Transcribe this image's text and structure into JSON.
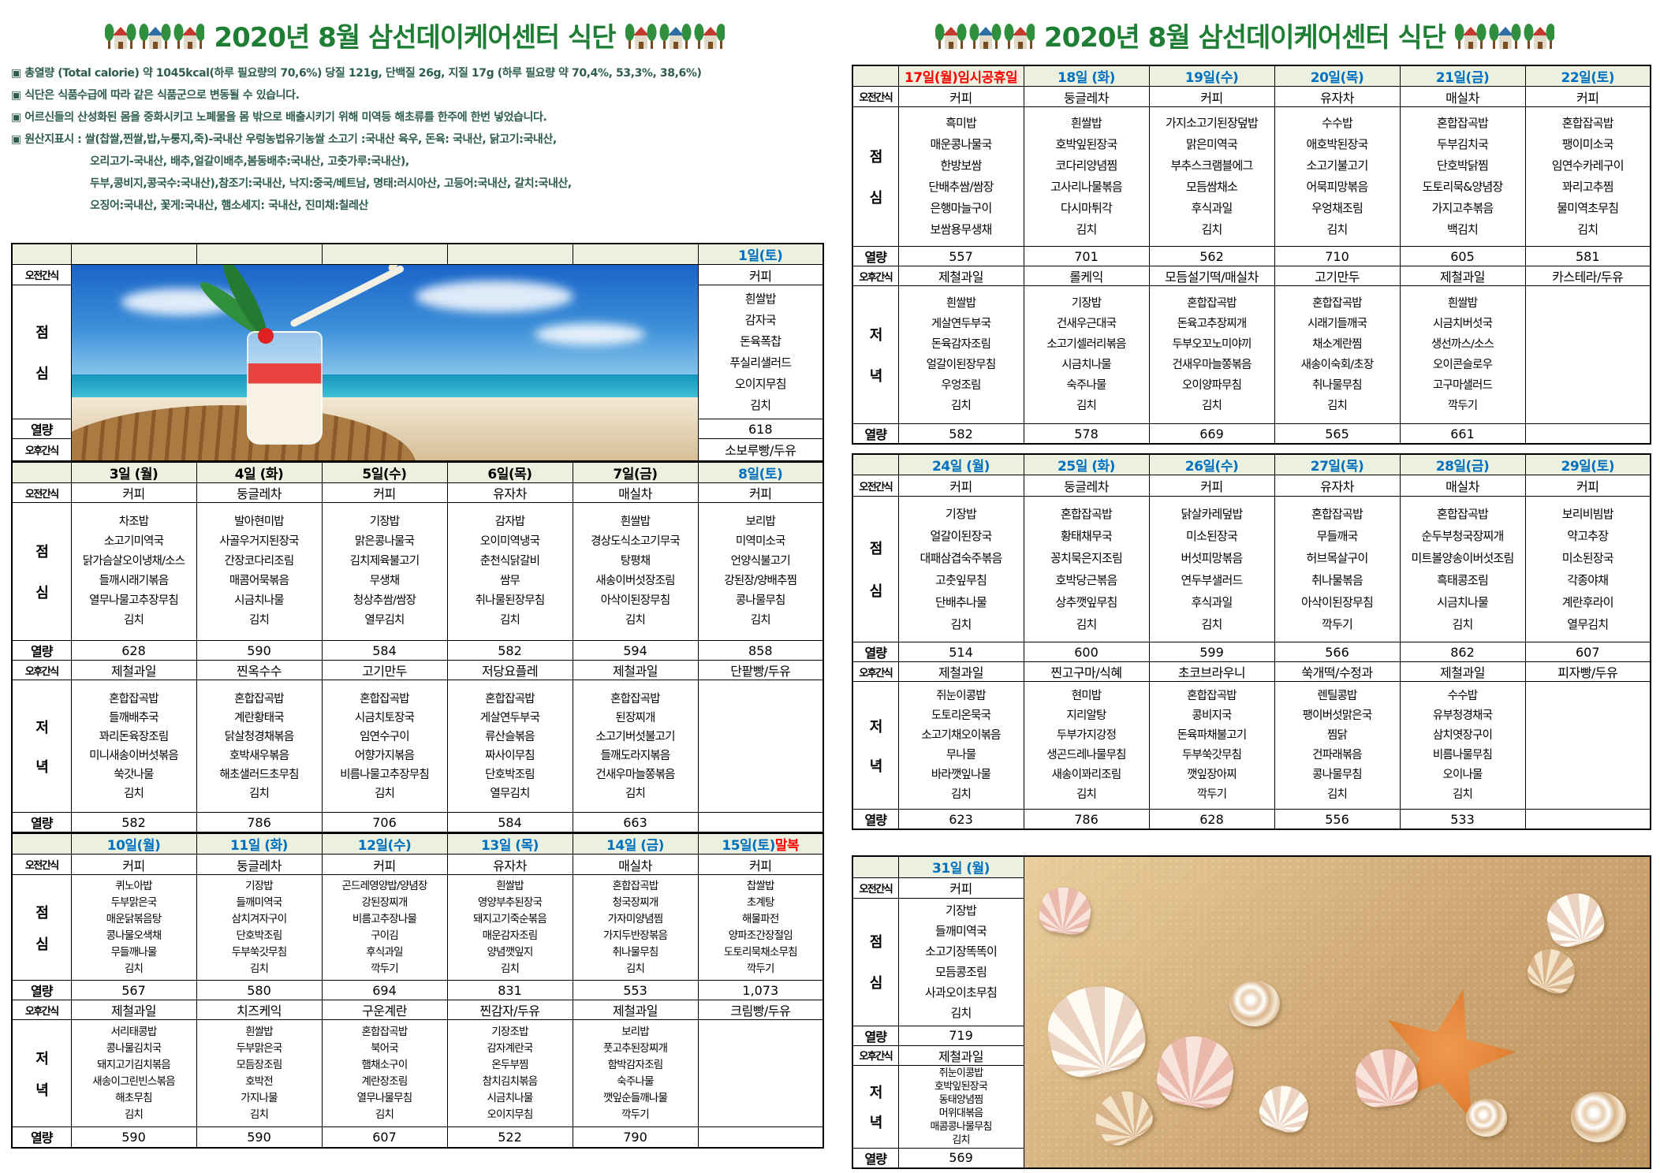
{
  "page_titles": [
    "2020년 8월 삼선데이케어센터 식단",
    "2020년 8월 삼선데이케어센터 식단"
  ],
  "notes": [
    {
      "text": "▣ 총열량 (Total calorie) 약 1045kcal(하루 필요량의 70,6%) 당질 121g, 단백질 26g, 지질 17g  (하루 필요량 약 70,4%, 53,3%, 38,6%)",
      "indent": false
    },
    {
      "text": "▣ 식단은 식품수급에 따라 같은 식품군으로 변동될 수 있습니다.",
      "indent": false
    },
    {
      "text": "▣ 어르신들의 산성화된 몸을 중화시키고 노폐물을 몸 밖으로 배출시키기 위해 미역등 해초류를 한주에 한번 넣었습니다.",
      "indent": false
    },
    {
      "text": "▣ 원산지표시 : 쌀(찹쌀,찐쌀,밥,누룽지,죽)-국내산 우렁농법유기농쌀  소고기 :국내산 육우, 돈육: 국내산, 닭고기:국내산,",
      "indent": false
    },
    {
      "text": "오리고기-국내산,  배추,얼갈이배추,봄동배추:국내산, 고춧가루:국내산),",
      "indent": true
    },
    {
      "text": "두부,콩비지,콩국수:국내산),참조기:국내산, 낙지:중국/베트남, 명태:러시아산, 고등어:국내산, 갈치:국내산,",
      "indent": true
    },
    {
      "text": "오징어:국내산, 꽃게:국내산, 햄소세지: 국내산, 진미채:칠레산",
      "indent": true
    }
  ],
  "row_labels": {
    "am": "오전간식",
    "lunch": "점심",
    "kcal": "열량",
    "pm": "오후간식",
    "dinner": "저녁"
  },
  "colors": {
    "title_green": "#1e7e34",
    "day_blue": "#0070c0",
    "day_red": "#ff0000",
    "day_black": "#000000",
    "header_bg": "#ebf1de",
    "note_text": "#2e5d4e"
  },
  "week1": {
    "day": {
      "label": "1일(토)",
      "label_color": "#0070c0",
      "am": "커피",
      "lunch": [
        "흰쌀밥",
        "감자국",
        "돈육폭찹",
        "푸실리샐러드",
        "오이지무침",
        "김치"
      ],
      "lunch_kcal": "618",
      "pm": "소보루빵/두유"
    }
  },
  "week31": {
    "day": {
      "label": "31일 (월)",
      "label_color": "#0070c0",
      "am": "커피",
      "lunch": [
        "기장밥",
        "들깨미역국",
        "소고기장똑똑이",
        "모듬콩조림",
        "사과오이초무침",
        "김치"
      ],
      "lunch_kcal": "719",
      "pm": "제철과일",
      "dinner": [
        "쥐눈이콩밥",
        "호박잎된장국",
        "동태양념찜",
        "머위대볶음",
        "매콤콩나물무침",
        "김치"
      ],
      "dinner_kcal": "569"
    }
  },
  "weeks": [
    {
      "days": [
        {
          "label": [
            {
              "text": "3일 (월)",
              "color": "#000000"
            }
          ],
          "am": "커피",
          "lunch": [
            "차조밥",
            "소고기미역국",
            "닭가슴살오이냉채/소스",
            "들깨시래기볶음",
            "열무나물고추장무침",
            "김치"
          ],
          "lunch_kcal": "628",
          "pm": "제철과일",
          "dinner": [
            "혼합잡곡밥",
            "들깨배추국",
            "꽈리돈육장조림",
            "미니새송이버섯볶음",
            "쑥갓나물",
            "김치"
          ],
          "dinner_kcal": "582"
        },
        {
          "label": [
            {
              "text": "4일 (화)",
              "color": "#000000"
            }
          ],
          "am": "둥글레차",
          "lunch": [
            "발아현미밥",
            "사골우거지된장국",
            "간장코다리조림",
            "매콤어묵볶음",
            "시금치나물",
            "김치"
          ],
          "lunch_kcal": "590",
          "pm": "찐옥수수",
          "dinner": [
            "혼합잡곡밥",
            "계란황태국",
            "닭살청경채볶음",
            "호박새우볶음",
            "해초샐러드초무침",
            "김치"
          ],
          "dinner_kcal": "786"
        },
        {
          "label": [
            {
              "text": "5일(수)",
              "color": "#000000"
            }
          ],
          "am": "커피",
          "lunch": [
            "기장밥",
            "맑은콩나물국",
            "김치제육불고기",
            "무생채",
            "청상추쌈/쌈장",
            "열무김치"
          ],
          "lunch_kcal": "584",
          "pm": "고기만두",
          "dinner": [
            "혼합잡곡밥",
            "시금치토장국",
            "임연수구이",
            "어향가지볶음",
            "비름나물고추장무침",
            "김치"
          ],
          "dinner_kcal": "706"
        },
        {
          "label": [
            {
              "text": "6일(목)",
              "color": "#000000"
            }
          ],
          "am": "유자차",
          "lunch": [
            "감자밥",
            "오이미역냉국",
            "춘천식닭갈비",
            "쌈무",
            "취나물된장무침",
            "김치"
          ],
          "lunch_kcal": "582",
          "pm": "저당요플레",
          "dinner": [
            "혼합잡곡밥",
            "게살연두부국",
            "류산슬볶음",
            "짜사이무침",
            "단호박조림",
            "열무김치"
          ],
          "dinner_kcal": "584"
        },
        {
          "label": [
            {
              "text": "7일(금)",
              "color": "#000000"
            }
          ],
          "am": "매실차",
          "lunch": [
            "흰쌀밥",
            "경상도식소고기무국",
            "탕평채",
            "새송이버섯장조림",
            "아삭이된장무침",
            "김치"
          ],
          "lunch_kcal": "594",
          "pm": "제철과일",
          "dinner": [
            "혼합잡곡밥",
            "된장찌개",
            "소고기버섯불고기",
            "들깨도라지볶음",
            "건새우마늘쫑볶음",
            "김치"
          ],
          "dinner_kcal": "663"
        },
        {
          "label": [
            {
              "text": "8일(토)",
              "color": "#0070c0"
            }
          ],
          "am": "커피",
          "lunch": [
            "보리밥",
            "미역미소국",
            "언양식불고기",
            "강된장/양배추찜",
            "콩나물무침",
            "김치"
          ],
          "lunch_kcal": "858",
          "pm": "단팥빵/두유",
          "dinner": [],
          "dinner_kcal": ""
        }
      ]
    },
    {
      "days": [
        {
          "label": [
            {
              "text": "10일(월)",
              "color": "#0070c0"
            }
          ],
          "am": "커피",
          "lunch": [
            "퀴노아밥",
            "두부맑은국",
            "매운닭볶음탕",
            "콩나물오색채",
            "무들깨나물",
            "김치"
          ],
          "lunch_kcal": "567",
          "pm": "제철과일",
          "dinner": [
            "서리태콩밥",
            "콩나물김치국",
            "돼지고기김치볶음",
            "새송이그린빈스볶음",
            "해초무침",
            "김치"
          ],
          "dinner_kcal": "590"
        },
        {
          "label": [
            {
              "text": "11일 (화)",
              "color": "#0070c0"
            }
          ],
          "am": "둥글레차",
          "lunch": [
            "기장밥",
            "들깨미역국",
            "삼치겨자구이",
            "단호박조림",
            "두부쑥갓무침",
            "김치"
          ],
          "lunch_kcal": "580",
          "pm": "치즈케익",
          "dinner": [
            "흰쌀밥",
            "두부맑은국",
            "모듬장조림",
            "호박전",
            "가지나물",
            "김치"
          ],
          "dinner_kcal": "590"
        },
        {
          "label": [
            {
              "text": "12일(수)",
              "color": "#0070c0"
            }
          ],
          "am": "커피",
          "lunch": [
            "곤드레영양밥/양념장",
            "강된장찌개",
            "비름고추장나물",
            "구이김",
            "후식과일",
            "깍두기"
          ],
          "lunch_kcal": "694",
          "pm": "구운계란",
          "dinner": [
            "혼합잡곡밥",
            "북어국",
            "햄채소구이",
            "계란장조림",
            "열무나물무침",
            "김치"
          ],
          "dinner_kcal": "607"
        },
        {
          "label": [
            {
              "text": "13일 (목)",
              "color": "#0070c0"
            }
          ],
          "am": "유자차",
          "lunch": [
            "흰쌀밥",
            "영양부추된장국",
            "돼지고기죽순볶음",
            "매운감자조림",
            "양념깻잎지",
            "김치"
          ],
          "lunch_kcal": "831",
          "pm": "찐감자/두유",
          "dinner": [
            "기장조밥",
            "감자계란국",
            "온두부찜",
            "참치김치볶음",
            "시금치나물",
            "오이지무침"
          ],
          "dinner_kcal": "522"
        },
        {
          "label": [
            {
              "text": "14일 (금)",
              "color": "#0070c0"
            }
          ],
          "am": "매실차",
          "lunch": [
            "혼합잡곡밥",
            "청국장찌개",
            "가자미양념찜",
            "가지두반장볶음",
            "취나물무침",
            "김치"
          ],
          "lunch_kcal": "553",
          "pm": "제철과일",
          "dinner": [
            "보리밥",
            "풋고추된장찌개",
            "함박감자조림",
            "숙주나물",
            "깻잎순들깨나물",
            "깍두기"
          ],
          "dinner_kcal": "790"
        },
        {
          "label": [
            {
              "text": "15일(토)",
              "color": "#0070c0"
            },
            {
              "text": "말복",
              "color": "#ff0000"
            }
          ],
          "am": "커피",
          "lunch": [
            "찹쌀밥",
            "초계탕",
            "해물파전",
            "양파조간장절임",
            "도토리묵채소무침",
            "깍두기"
          ],
          "lunch_kcal": "1,073",
          "pm": "크림빵/두유",
          "dinner": [],
          "dinner_kcal": ""
        }
      ]
    },
    {
      "days": [
        {
          "label": [
            {
              "text": "17일(월)임시공휴일",
              "color": "#ff0000"
            }
          ],
          "am": "커피",
          "lunch": [
            "흑미밥",
            "매운콩나물국",
            "한방보쌈",
            "단배추쌈/쌈장",
            "은행마늘구이",
            "보쌈용무생채"
          ],
          "lunch_kcal": "557",
          "pm": "제철과일",
          "dinner": [
            "흰쌀밥",
            "게살연두부국",
            "돈육감자조림",
            "얼갈이된장무침",
            "우엉조림",
            "김치"
          ],
          "dinner_kcal": "582"
        },
        {
          "label": [
            {
              "text": "18일 (화)",
              "color": "#0070c0"
            }
          ],
          "am": "둥글레차",
          "lunch": [
            "흰쌀밥",
            "호박잎된장국",
            "코다리양념찜",
            "고사리나물볶음",
            "다시마튀각",
            "김치"
          ],
          "lunch_kcal": "701",
          "pm": "롤케익",
          "dinner": [
            "기장밥",
            "건새우근대국",
            "소고기셀러리볶음",
            "시금치나물",
            "숙주나물",
            "김치"
          ],
          "dinner_kcal": "578"
        },
        {
          "label": [
            {
              "text": "19일(수)",
              "color": "#0070c0"
            }
          ],
          "am": "커피",
          "lunch": [
            "가지소고기된장덮밥",
            "맑은미역국",
            "부추스크램블에그",
            "모듬쌈채소",
            "후식과일",
            "김치"
          ],
          "lunch_kcal": "562",
          "pm": "모듬설기떡/매실차",
          "dinner": [
            "혼합잡곡밥",
            "돈육고추장찌개",
            "두부오꼬노미야끼",
            "건새우마늘쫑볶음",
            "오이양파무침",
            "김치"
          ],
          "dinner_kcal": "669"
        },
        {
          "label": [
            {
              "text": "20일(목)",
              "color": "#0070c0"
            }
          ],
          "am": "유자차",
          "lunch": [
            "수수밥",
            "애호박된장국",
            "소고기불고기",
            "어묵피망볶음",
            "우엉채조림",
            "김치"
          ],
          "lunch_kcal": "710",
          "pm": "고기만두",
          "dinner": [
            "혼합잡곡밥",
            "시래기들깨국",
            "채소계란찜",
            "새송이숙회/초장",
            "취나물무침",
            "김치"
          ],
          "dinner_kcal": "565"
        },
        {
          "label": [
            {
              "text": "21일(금)",
              "color": "#0070c0"
            }
          ],
          "am": "매실차",
          "lunch": [
            "혼합잡곡밥",
            "두부김치국",
            "단호박닭찜",
            "도토리묵&양념장",
            "가지고추볶음",
            "백김치"
          ],
          "lunch_kcal": "605",
          "pm": "제철과일",
          "dinner": [
            "흰쌀밥",
            "시금치버섯국",
            "생선까스/소스",
            "오이콘슬로우",
            "고구마샐러드",
            "깍두기"
          ],
          "dinner_kcal": "661"
        },
        {
          "label": [
            {
              "text": "22일(토)",
              "color": "#0070c0"
            }
          ],
          "am": "커피",
          "lunch": [
            "혼합잡곡밥",
            "팽이미소국",
            "임연수카레구이",
            "꽈리고추찜",
            "물미역초무침",
            "김치"
          ],
          "lunch_kcal": "581",
          "pm": "카스테라/두유",
          "dinner": [],
          "dinner_kcal": ""
        }
      ]
    },
    {
      "days": [
        {
          "label": [
            {
              "text": "24일 (월)",
              "color": "#0070c0"
            }
          ],
          "am": "커피",
          "lunch": [
            "기장밥",
            "얼갈이된장국",
            "대패삼겹숙주볶음",
            "고춧잎무침",
            "단배추나물",
            "김치"
          ],
          "lunch_kcal": "514",
          "pm": "제철과일",
          "dinner": [
            "쥐눈이콩밥",
            "도토리온묵국",
            "소고기채오이볶음",
            "무나물",
            "바라깻잎나물",
            "김치"
          ],
          "dinner_kcal": "623"
        },
        {
          "label": [
            {
              "text": "25일 (화)",
              "color": "#0070c0"
            }
          ],
          "am": "둥글레차",
          "lunch": [
            "혼합잡곡밥",
            "황태채무국",
            "꽁치묵은지조림",
            "호박당근볶음",
            "상추깻잎무침",
            "김치"
          ],
          "lunch_kcal": "600",
          "pm": "찐고구마/식혜",
          "dinner": [
            "현미밥",
            "지리알탕",
            "두부가지강정",
            "생곤드레나물무침",
            "새송이꽈리조림",
            "김치"
          ],
          "dinner_kcal": "786"
        },
        {
          "label": [
            {
              "text": "26일(수)",
              "color": "#0070c0"
            }
          ],
          "am": "커피",
          "lunch": [
            "닭살카레덮밥",
            "미소된장국",
            "버섯피망볶음",
            "연두부샐러드",
            "후식과일",
            "김치"
          ],
          "lunch_kcal": "599",
          "pm": "초코브라우니",
          "dinner": [
            "혼합잡곡밥",
            "콩비지국",
            "돈육파채불고기",
            "두부쑥갓무침",
            "깻잎장아찌",
            "깍두기"
          ],
          "dinner_kcal": "628"
        },
        {
          "label": [
            {
              "text": "27일(목)",
              "color": "#0070c0"
            }
          ],
          "am": "유자차",
          "lunch": [
            "혼합잡곡밥",
            "무들깨국",
            "허브목살구이",
            "취나물볶음",
            "아삭이된장무침",
            "깍두기"
          ],
          "lunch_kcal": "566",
          "pm": "쑥개떡/수정과",
          "dinner": [
            "렌틸콩밥",
            "팽이버섯맑은국",
            "찜닭",
            "건파래볶음",
            "콩나물무침",
            "김치"
          ],
          "dinner_kcal": "556"
        },
        {
          "label": [
            {
              "text": "28일(금)",
              "color": "#0070c0"
            }
          ],
          "am": "매실차",
          "lunch": [
            "혼합잡곡밥",
            "순두부청국장찌개",
            "미트볼양송이버섯조림",
            "흑태콩조림",
            "시금치나물",
            "김치"
          ],
          "lunch_kcal": "862",
          "pm": "제철과일",
          "dinner": [
            "수수밥",
            "유부청경채국",
            "삼치엿장구이",
            "비름나물무침",
            "오이나물",
            "김치"
          ],
          "dinner_kcal": "533"
        },
        {
          "label": [
            {
              "text": "29일(토)",
              "color": "#0070c0"
            }
          ],
          "am": "커피",
          "lunch": [
            "보리비빔밥",
            "약고추장",
            "미소된장국",
            "각종야채",
            "계란후라이",
            "열무김치"
          ],
          "lunch_kcal": "607",
          "pm": "피자빵/두유",
          "dinner": [],
          "dinner_kcal": ""
        }
      ]
    }
  ]
}
